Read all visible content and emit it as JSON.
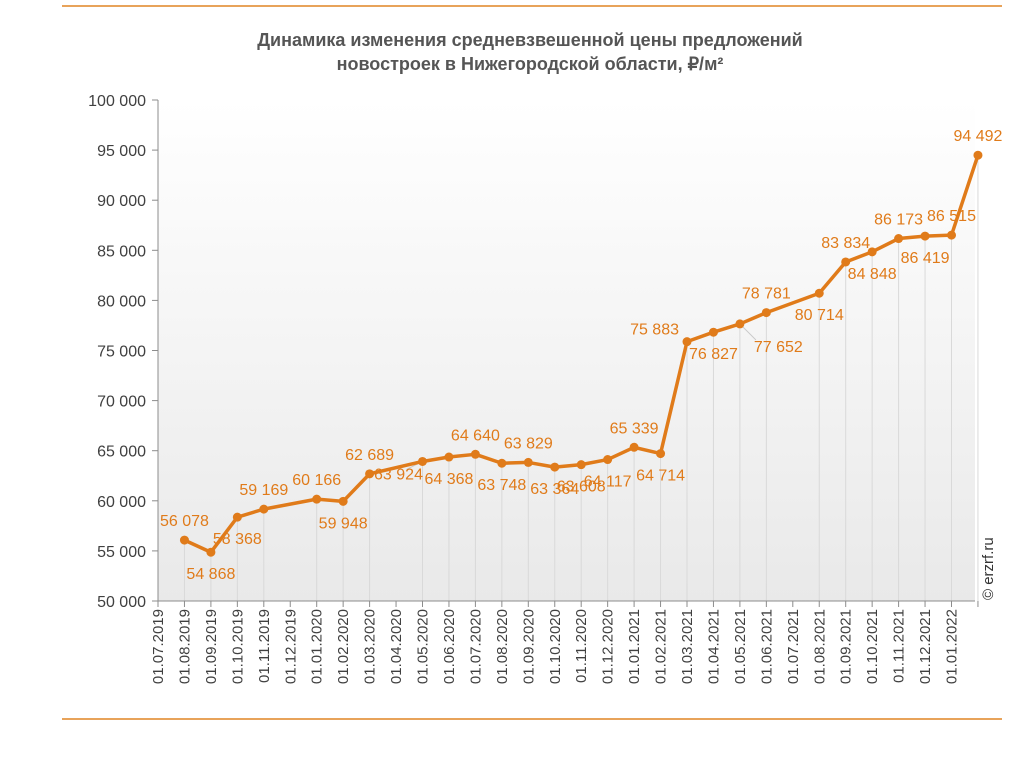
{
  "header": {
    "title_line1": "Динамика изменения средневзвешенной цены предложений",
    "title_line2": "новостроек в Нижегородской области, ₽/м²"
  },
  "credit": "© erzrf.ru",
  "colors": {
    "series": "#e07b1a",
    "rule": "#e8a35a",
    "grid": "#d9d9d9"
  },
  "chart_data": {
    "type": "line",
    "title": "Динамика изменения средневзвешенной цены предложений новостроек в Нижегородской области, ₽/м²",
    "xlabel": "",
    "ylabel": "",
    "ylim": [
      50000,
      100000
    ],
    "yticks": [
      50000,
      55000,
      60000,
      65000,
      70000,
      75000,
      80000,
      85000,
      90000,
      95000,
      100000
    ],
    "ytick_labels": [
      "50 000",
      "55 000",
      "60 000",
      "65 000",
      "70 000",
      "75 000",
      "80 000",
      "85 000",
      "90 000",
      "95 000",
      "100 000"
    ],
    "categories": [
      "01.07.2019",
      "01.08.2019",
      "01.09.2019",
      "01.10.2019",
      "01.11.2019",
      "01.12.2019",
      "01.01.2020",
      "01.02.2020",
      "01.03.2020",
      "01.04.2020",
      "01.05.2020",
      "01.06.2020",
      "01.07.2020",
      "01.08.2020",
      "01.09.2020",
      "01.10.2020",
      "01.11.2020",
      "01.12.2020",
      "01.01.2021",
      "01.02.2021",
      "01.03.2021",
      "01.04.2021",
      "01.05.2021",
      "01.06.2021",
      "01.07.2021",
      "01.08.2021",
      "01.09.2021",
      "01.10.2021",
      "01.11.2021",
      "01.12.2021",
      "01.01.2022"
    ],
    "grid": true,
    "legend": "none",
    "points": [
      {
        "date": "01.08.2019",
        "value": 56078,
        "label": "56 078",
        "label_pos": "above"
      },
      {
        "date": "01.09.2019",
        "value": 54868,
        "label": "54 868",
        "label_pos": "below"
      },
      {
        "date": "01.10.2019",
        "value": 58368,
        "label": "58 368",
        "label_pos": "below"
      },
      {
        "date": "01.11.2019",
        "value": 59169,
        "label": "59 169",
        "label_pos": "above"
      },
      {
        "date": "01.01.2020",
        "value": 60166,
        "label": "60 166",
        "label_pos": "above"
      },
      {
        "date": "01.02.2020",
        "value": 59948,
        "label": "59 948",
        "label_pos": "below"
      },
      {
        "date": "01.03.2020",
        "value": 62689,
        "label": "62 689",
        "label_pos": "above"
      },
      {
        "date": "01.05.2020",
        "value": 63924,
        "label": "63 924",
        "label_pos": "below-left"
      },
      {
        "date": "01.06.2020",
        "value": 64368,
        "label": "64 368",
        "label_pos": "below"
      },
      {
        "date": "01.07.2020",
        "value": 64640,
        "label": "64 640",
        "label_pos": "above"
      },
      {
        "date": "01.08.2020",
        "value": 63748,
        "label": "63 748",
        "label_pos": "below"
      },
      {
        "date": "01.09.2020",
        "value": 63829,
        "label": "63 829",
        "label_pos": "above"
      },
      {
        "date": "01.10.2020",
        "value": 63364,
        "label": "63 364",
        "label_pos": "below"
      },
      {
        "date": "01.11.2020",
        "value": 63608,
        "label": "63 608",
        "label_pos": "below"
      },
      {
        "date": "01.12.2020",
        "value": 64117,
        "label": "64 117",
        "label_pos": "below"
      },
      {
        "date": "01.01.2021",
        "value": 65339,
        "label": "65 339",
        "label_pos": "above"
      },
      {
        "date": "01.02.2021",
        "value": 64714,
        "label": "64 714",
        "label_pos": "below"
      },
      {
        "date": "01.03.2021",
        "value": 75883,
        "label": "75 883",
        "label_pos": "left"
      },
      {
        "date": "01.04.2021",
        "value": 76827,
        "label": "76 827",
        "label_pos": "below"
      },
      {
        "date": "01.05.2021",
        "value": 77652,
        "label": "77 652",
        "label_pos": "below-right"
      },
      {
        "date": "01.06.2021",
        "value": 78781,
        "label": "78 781",
        "label_pos": "above"
      },
      {
        "date": "01.08.2021",
        "value": 80714,
        "label": "80 714",
        "label_pos": "below"
      },
      {
        "date": "01.09.2021",
        "value": 83834,
        "label": "83 834",
        "label_pos": "above"
      },
      {
        "date": "01.10.2021",
        "value": 84848,
        "label": "84 848",
        "label_pos": "below"
      },
      {
        "date": "01.11.2021",
        "value": 86173,
        "label": "86 173",
        "label_pos": "above"
      },
      {
        "date": "01.12.2021",
        "value": 86419,
        "label": "86 419",
        "label_pos": "below"
      },
      {
        "date": "01.01.2022",
        "value": 86515,
        "label": "86 515",
        "label_pos": "above"
      },
      {
        "date": "01.02.2022",
        "value": 94492,
        "label": "94 492",
        "label_pos": "above"
      }
    ]
  }
}
